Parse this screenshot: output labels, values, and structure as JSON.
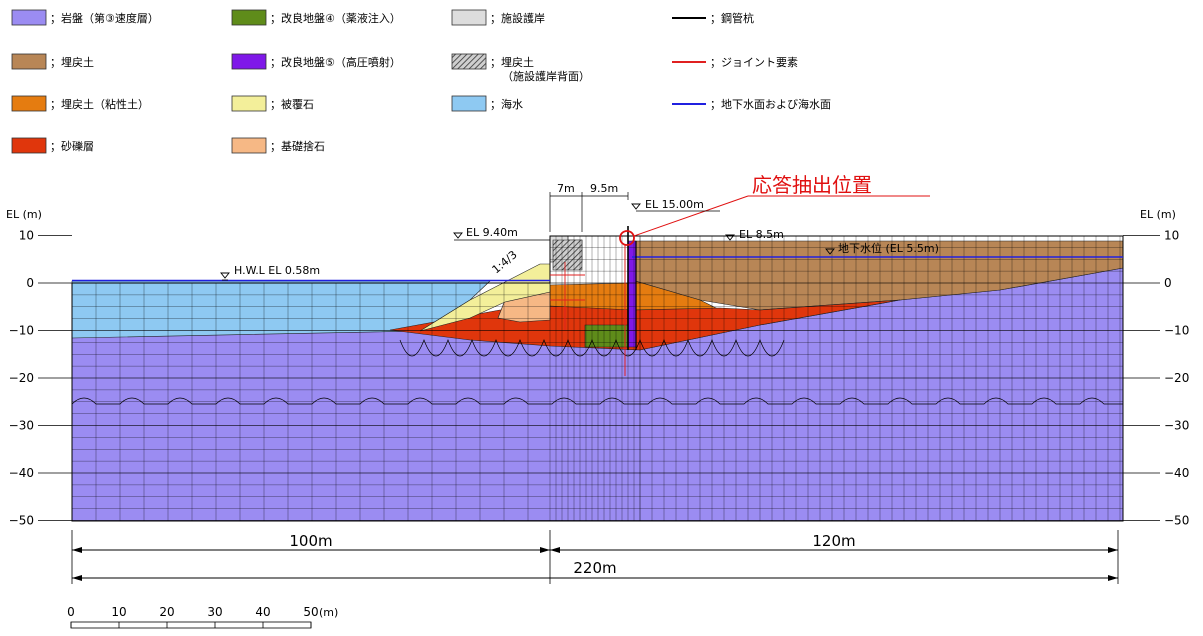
{
  "legend": [
    {
      "id": "rock",
      "label": "；岩盤（第③速度層）",
      "color": "#9b8cf2",
      "kind": "box"
    },
    {
      "id": "fill",
      "label": "；埋戻土",
      "color": "#b88656",
      "kind": "box"
    },
    {
      "id": "fill_clay",
      "label": "；埋戻土（粘性土）",
      "color": "#e57c10",
      "kind": "box"
    },
    {
      "id": "gravel",
      "label": "；砂礫層",
      "color": "#e0360c",
      "kind": "box"
    },
    {
      "id": "improved4",
      "label": "；改良地盤④（薬液注入）",
      "color": "#5f8c1a",
      "kind": "box"
    },
    {
      "id": "improved5",
      "label": "；改良地盤⑤（高圧噴射）",
      "color": "#7f18e8",
      "kind": "box"
    },
    {
      "id": "armor",
      "label": "；被覆石",
      "color": "#f3ef9a",
      "kind": "box"
    },
    {
      "id": "rubble",
      "label": "；基礎捨石",
      "color": "#f6b885",
      "kind": "box"
    },
    {
      "id": "revetment",
      "label": "；施設護岸",
      "color": "#dddddd",
      "kind": "box"
    },
    {
      "id": "backfill",
      "label": "；埋戻土",
      "label2": "（施設護岸背面）",
      "color": "#777777",
      "kind": "hatch"
    },
    {
      "id": "seawater",
      "label": "；海水",
      "color": "#8ec9f2",
      "kind": "box"
    },
    {
      "id": "pile",
      "label": "；鋼管杭",
      "color": "#000000",
      "kind": "line"
    },
    {
      "id": "joint",
      "label": "；ジョイント要素",
      "color": "#e02020",
      "kind": "line"
    },
    {
      "id": "water_level",
      "label": "；地下水面および海水面",
      "color": "#2020e0",
      "kind": "line"
    }
  ],
  "axis": {
    "label": "EL (m)",
    "ticks": [
      10,
      0,
      -10,
      -20,
      -30,
      -40,
      -50
    ]
  },
  "annotations": {
    "response_point": "応答抽出位置",
    "el_1500": "EL 15.00m",
    "el_940": "EL 9.40m",
    "el_85": "EL 8.5m",
    "gw": "地下水位 (EL 5.5m)",
    "hwl": "H.W.L EL 0.58m",
    "slope": "1:4/3",
    "dim_7m": "7m",
    "dim_95m": "9.5m"
  },
  "dimensions": {
    "left": "100m",
    "right": "120m",
    "total": "220m"
  },
  "scale_bar": {
    "ticks": [
      "0",
      "10",
      "20",
      "30",
      "40",
      "50"
    ],
    "unit": "(m)"
  },
  "colors": {
    "rock": "#9b8cf2",
    "fill": "#b88656",
    "fill_clay": "#e57c10",
    "gravel": "#e0360c",
    "improved4": "#5f8c1a",
    "improved5": "#7f18e8",
    "armor": "#f3ef9a",
    "rubble": "#f6b885",
    "revetment": "#dddddd",
    "seawater": "#8ec9f2",
    "pile": "#000000",
    "joint": "#e02020",
    "water": "#2020e0",
    "annotation": "#e01010"
  }
}
